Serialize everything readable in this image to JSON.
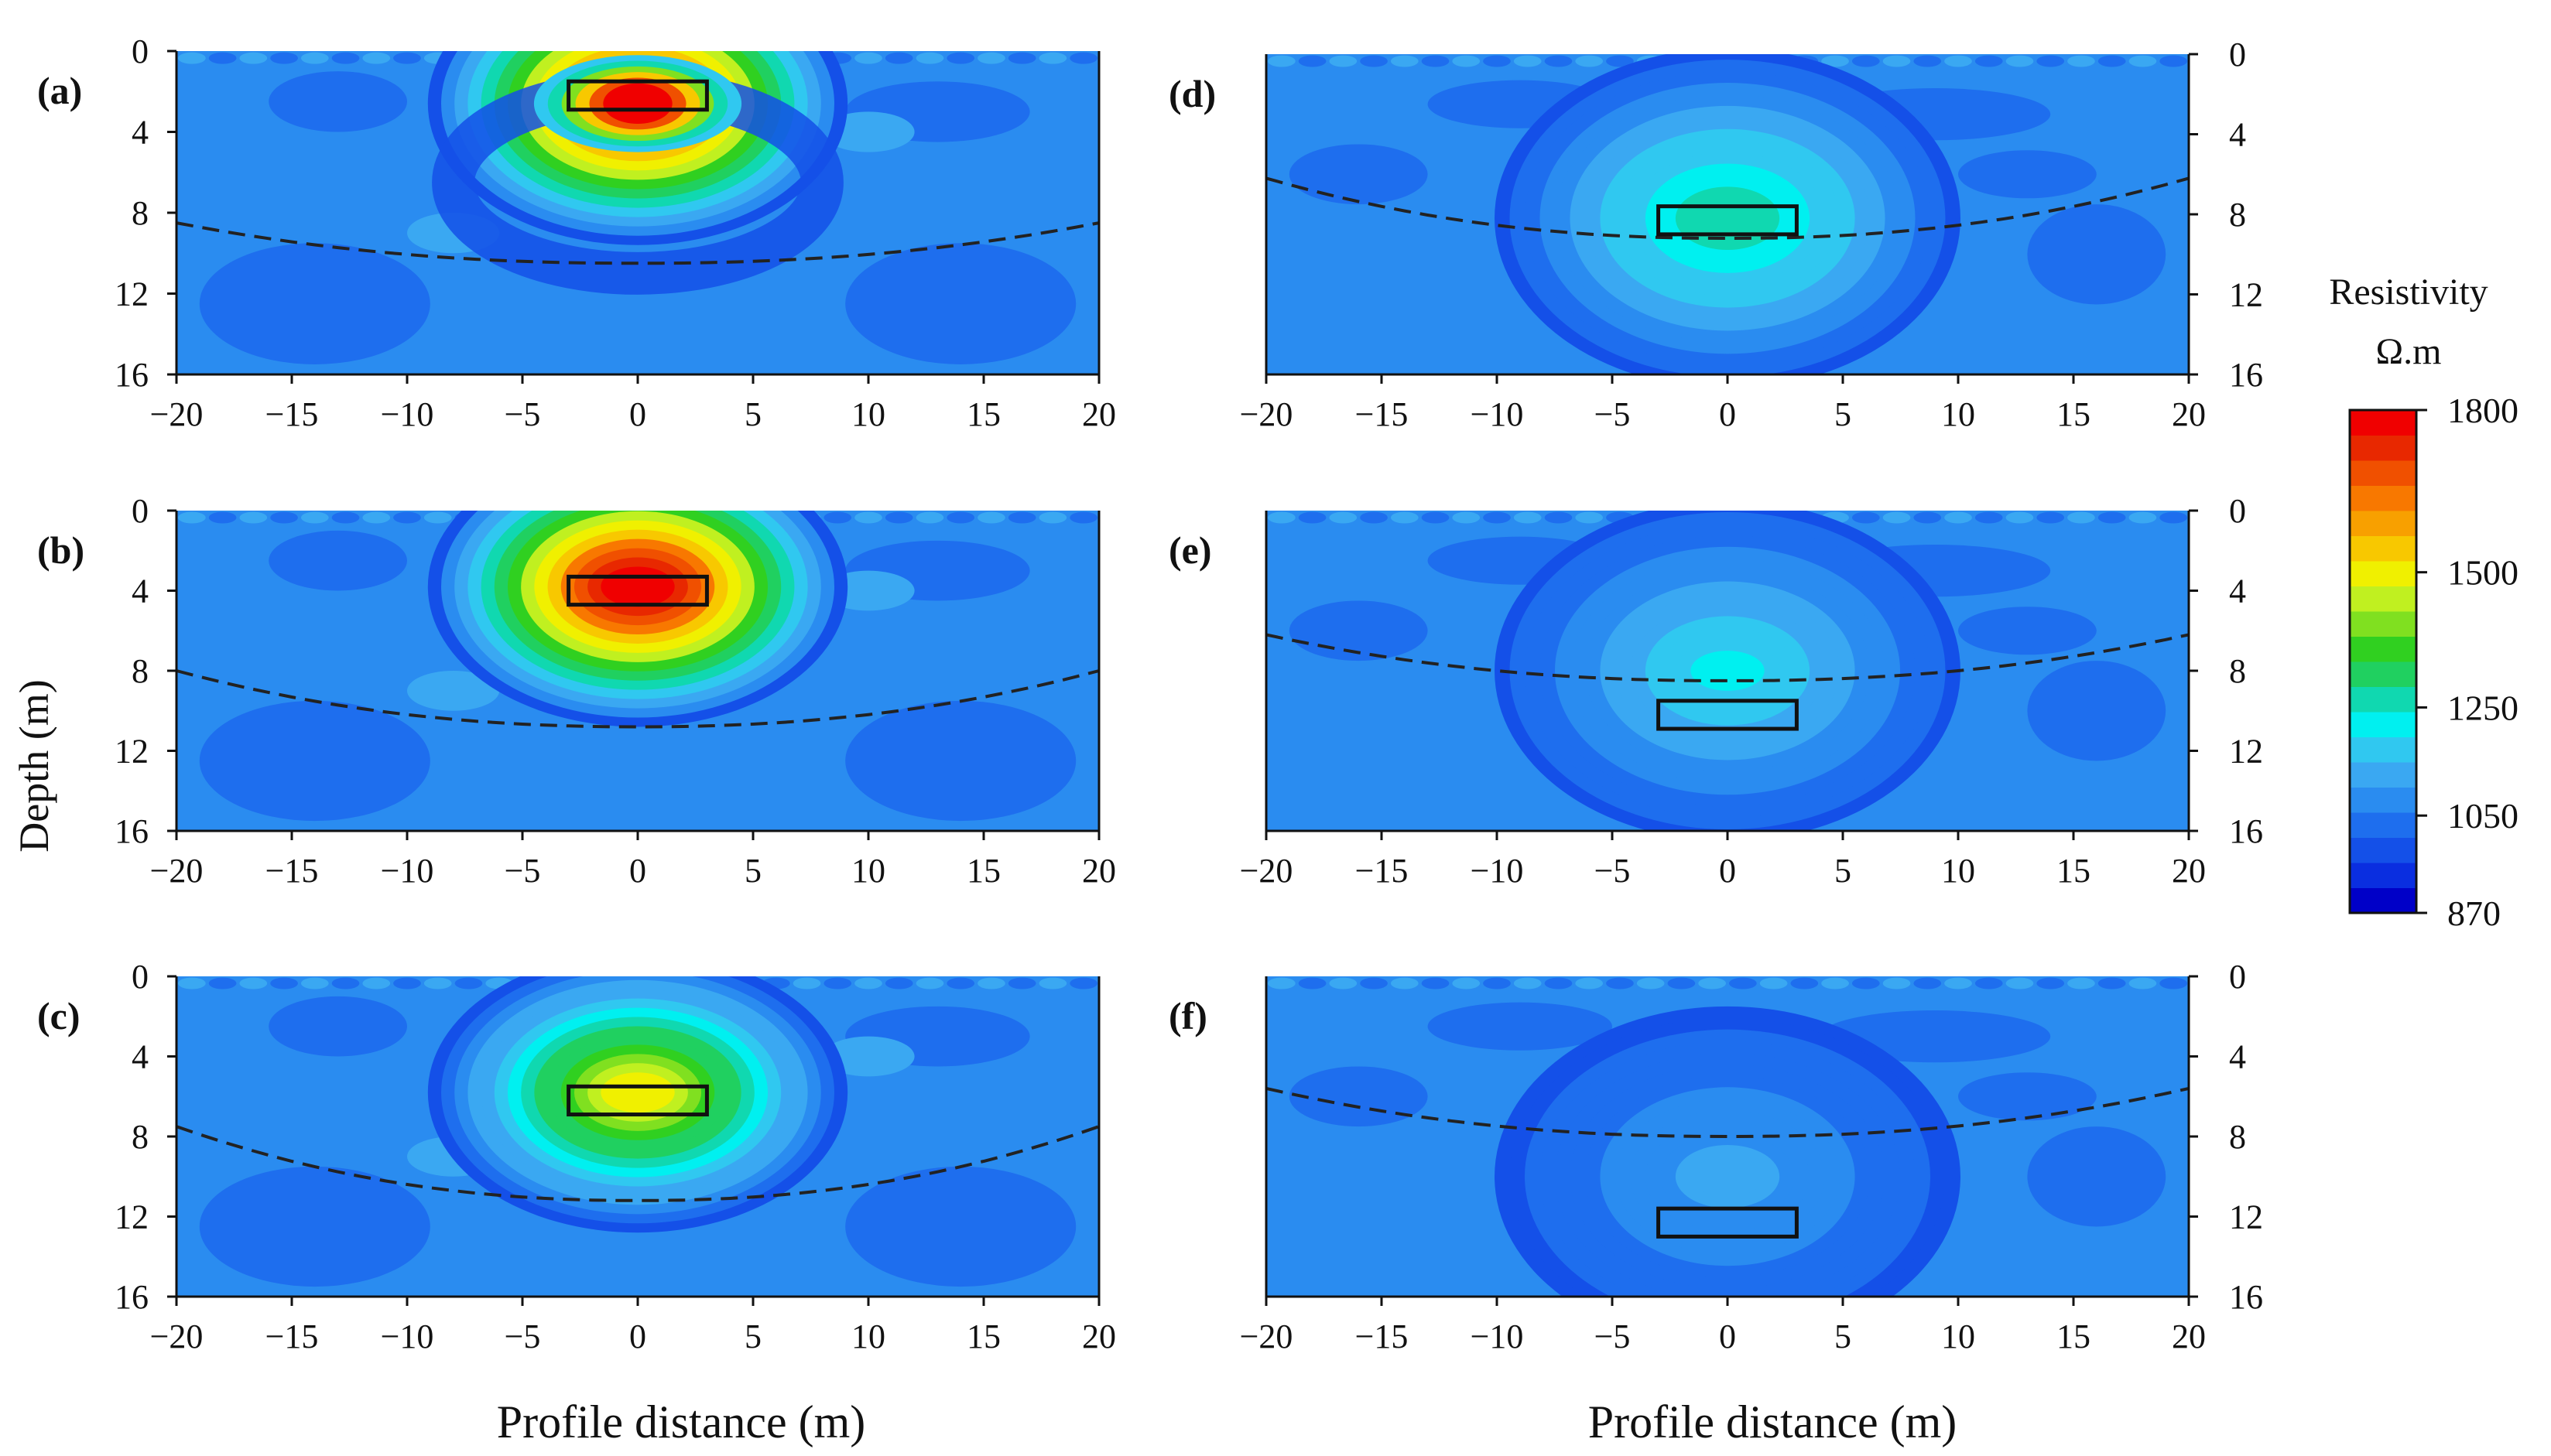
{
  "chart_data": {
    "type": "heatmap",
    "x_axis_label": "Profile distance (m)",
    "y_axis_label": "Depth (m)",
    "x_ticks": [
      -20,
      -15,
      -10,
      -5,
      0,
      5,
      10,
      15,
      20
    ],
    "y_ticks": [
      0,
      4,
      8,
      12,
      16
    ],
    "xlim": [
      -20,
      20
    ],
    "ylim": [
      0,
      16
    ],
    "colorbar": {
      "title": "Resistivity",
      "unit": "Ω.m",
      "min": 870,
      "max": 1800,
      "tick_values": [
        1800,
        1500,
        1250,
        1050,
        870
      ],
      "colors": [
        "#0000c8",
        "#0a2ee0",
        "#1450e8",
        "#1e6eee",
        "#2a8cf0",
        "#3aa8f2",
        "#30c8f0",
        "#00f0f0",
        "#10d8b0",
        "#20d060",
        "#30d020",
        "#80e020",
        "#c0f020",
        "#f0f000",
        "#f8c800",
        "#f8a000",
        "#f87800",
        "#f05000",
        "#e82800",
        "#f00000"
      ]
    },
    "panels": [
      {
        "label": "(a)",
        "side": "left",
        "target_x": [
          -3,
          3
        ],
        "target_depth": [
          1.5,
          2.9
        ],
        "anomaly": {
          "x": 0,
          "depth": 2.6,
          "peak": 1800
        },
        "boundary_depth_edge": 8.5,
        "boundary_depth_center": 10.5
      },
      {
        "label": "(b)",
        "side": "left",
        "target_x": [
          -3,
          3
        ],
        "target_depth": [
          3.3,
          4.7
        ],
        "anomaly": {
          "x": 0,
          "depth": 3.8,
          "peak": 1800
        },
        "boundary_depth_edge": 8.0,
        "boundary_depth_center": 10.8
      },
      {
        "label": "(c)",
        "side": "left",
        "target_x": [
          -3,
          3
        ],
        "target_depth": [
          5.5,
          6.9
        ],
        "anomaly": {
          "x": 0,
          "depth": 5.8,
          "peak": 1480
        },
        "boundary_depth_edge": 7.5,
        "boundary_depth_center": 11.2
      },
      {
        "label": "(d)",
        "side": "right",
        "target_x": [
          -3,
          3
        ],
        "target_depth": [
          7.6,
          9.0
        ],
        "anomaly": {
          "x": 0,
          "depth": 8.2,
          "peak": 1280
        },
        "boundary_depth_edge": 6.2,
        "boundary_depth_center": 9.2
      },
      {
        "label": "(e)",
        "side": "right",
        "target_x": [
          -3,
          3
        ],
        "target_depth": [
          9.5,
          10.9
        ],
        "anomaly": {
          "x": 0,
          "depth": 8.0,
          "peak": 1200
        },
        "boundary_depth_edge": 6.2,
        "boundary_depth_center": 8.5
      },
      {
        "label": "(f)",
        "side": "right",
        "target_x": [
          -3,
          3
        ],
        "target_depth": [
          11.6,
          13.0
        ],
        "anomaly": {
          "x": 0,
          "depth": 10.0,
          "peak": 1120
        },
        "boundary_depth_edge": 5.6,
        "boundary_depth_center": 8.0
      }
    ]
  }
}
